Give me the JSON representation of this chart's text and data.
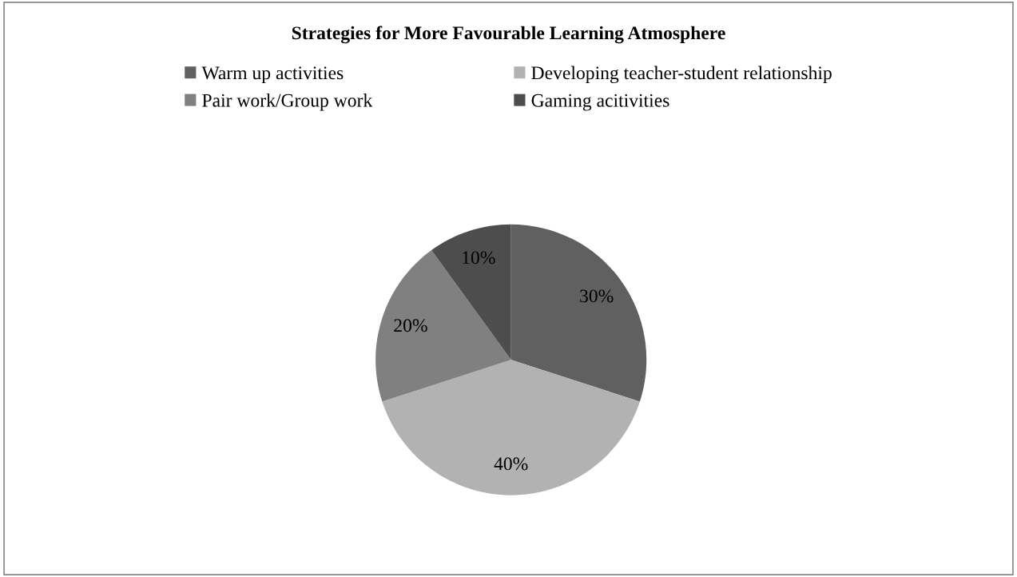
{
  "chart_data": {
    "type": "pie",
    "title": "Strategies for More Favourable Learning Atmosphere",
    "categories": [
      "Warm up activities",
      "Developing teacher-student relationship",
      "Pair work/Group work",
      "Gaming acitivities"
    ],
    "values": [
      30,
      40,
      20,
      10
    ],
    "colors": [
      "#606060",
      "#b2b2b2",
      "#808080",
      "#4d4d4d"
    ],
    "value_labels": [
      "30%",
      "40%",
      "20%",
      "10%"
    ],
    "legend": "top"
  }
}
